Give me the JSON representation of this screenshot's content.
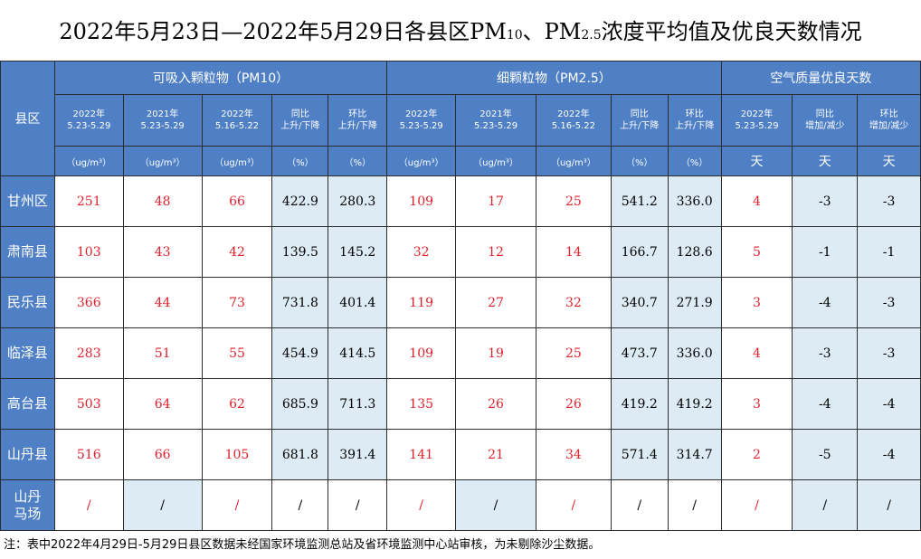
{
  "title": {
    "prefix": "2022年5月23日—2022年5月29日各县区PM",
    "pm10_sub": "10",
    "sep": "、PM",
    "pm25_sub": "2.5",
    "suffix": "浓度平均值及优良天数情况"
  },
  "header": {
    "county": "县区",
    "groups": [
      "可吸入颗粒物（PM10）",
      "细颗粒物（PM2.5）",
      "空气质量优良天数"
    ],
    "columns": [
      [
        "2022年",
        "5.23-5.29"
      ],
      [
        "2021年",
        "5.23-5.29"
      ],
      [
        "2022年",
        "5.16-5.22"
      ],
      [
        "同比",
        "上升/下降"
      ],
      [
        "环比",
        "上升/下降"
      ],
      [
        "2022年",
        "5.23-5.29"
      ],
      [
        "2021年",
        "5.23-5.29"
      ],
      [
        "2022年",
        "5.16-5.22"
      ],
      [
        "同比",
        "上升/下降"
      ],
      [
        "环比",
        "上升/下降"
      ],
      [
        "2022年",
        "5.23-5.29"
      ],
      [
        "同比",
        "增加/减少"
      ],
      [
        "环比",
        "增加/减少"
      ]
    ],
    "units": [
      "（ug/m³）",
      "（ug/m³）",
      "（ug/m³）",
      "（%）",
      "（%）",
      "（ug/m³）",
      "（ug/m³）",
      "（ug/m³）",
      "（%）",
      "（%）",
      "天",
      "天",
      "天"
    ]
  },
  "rows": [
    {
      "county": "甘州区",
      "values": [
        "251",
        "48",
        "66",
        "422.9",
        "280.3",
        "109",
        "17",
        "25",
        "541.2",
        "336.0",
        "4",
        "-3",
        "-3"
      ]
    },
    {
      "county": "肃南县",
      "values": [
        "103",
        "43",
        "42",
        "139.5",
        "145.2",
        "32",
        "12",
        "14",
        "166.7",
        "128.6",
        "5",
        "-1",
        "-1"
      ]
    },
    {
      "county": "民乐县",
      "values": [
        "366",
        "44",
        "73",
        "731.8",
        "401.4",
        "119",
        "27",
        "32",
        "340.7",
        "271.9",
        "3",
        "-4",
        "-3"
      ]
    },
    {
      "county": "临泽县",
      "values": [
        "283",
        "51",
        "55",
        "454.9",
        "414.5",
        "109",
        "19",
        "25",
        "473.7",
        "336.0",
        "4",
        "-3",
        "-3"
      ]
    },
    {
      "county": "高台县",
      "values": [
        "503",
        "64",
        "62",
        "685.9",
        "711.3",
        "135",
        "26",
        "26",
        "419.2",
        "419.2",
        "3",
        "-4",
        "-4"
      ]
    },
    {
      "county": "山丹县",
      "values": [
        "516",
        "66",
        "105",
        "681.8",
        "391.4",
        "141",
        "21",
        "34",
        "571.4",
        "314.7",
        "2",
        "-5",
        "-4"
      ]
    },
    {
      "county": "山丹\n马场",
      "values": [
        "/",
        "/",
        "/",
        "/",
        "/",
        "/",
        "/",
        "/",
        "/",
        "/",
        "/",
        "/",
        "/"
      ]
    }
  ],
  "note": "注：表中2022年4月29日-5月29日县区数据未经国家环境监测总站及省环境监测中心站审核，为未剔除沙尘数据。",
  "colors": {
    "header_bg": "#4f7fc4",
    "header_text": "#ffffff",
    "cell_alt_bg": "#dcebf4",
    "value_red": "#e2212c",
    "border": "#2c2c2c"
  }
}
